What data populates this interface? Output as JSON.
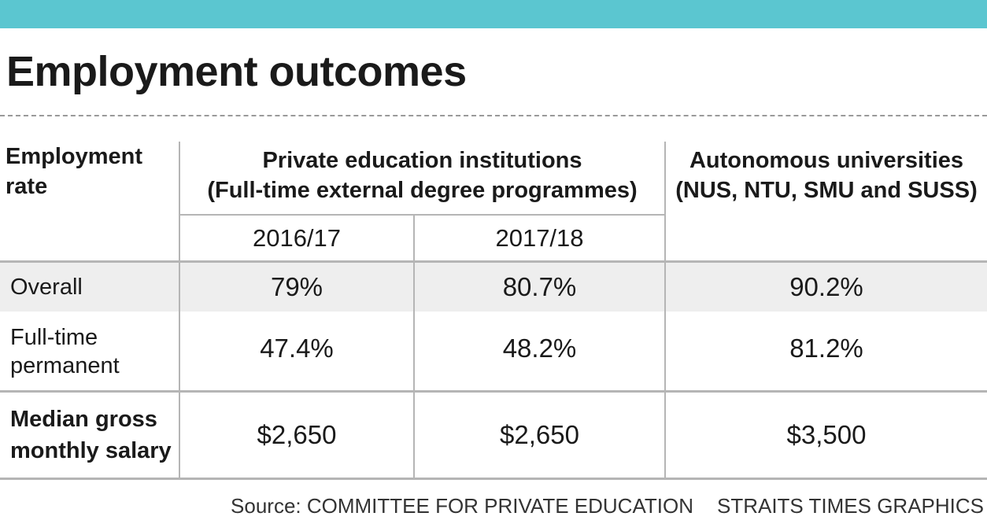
{
  "title": "Employment outcomes",
  "table": {
    "header": {
      "row_label": "Employment\nrate",
      "group_private": "Private education institutions\n(Full-time external degree programmes)",
      "years": [
        "2016/17",
        "2017/18"
      ],
      "group_autonomous": "Autonomous universities\n(NUS, NTU, SMU and SUSS)"
    },
    "rows": [
      {
        "label": "Overall",
        "values": [
          "79%",
          "80.7%",
          "90.2%"
        ]
      },
      {
        "label": "Full-time\npermanent",
        "values": [
          "47.4%",
          "48.2%",
          "81.2%"
        ]
      },
      {
        "label": "Median gross\nmonthly salary",
        "values": [
          "$2,650",
          "$2,650",
          "$3,500"
        ]
      }
    ]
  },
  "footer": {
    "source": "Source: COMMITTEE FOR PRIVATE EDUCATION",
    "credit": "STRAITS TIMES GRAPHICS"
  },
  "colors": {
    "top_bar": "#5bc6d0",
    "shaded_row": "#eeeeee",
    "rule": "#b5b5b5",
    "text": "#1a1a1a"
  }
}
